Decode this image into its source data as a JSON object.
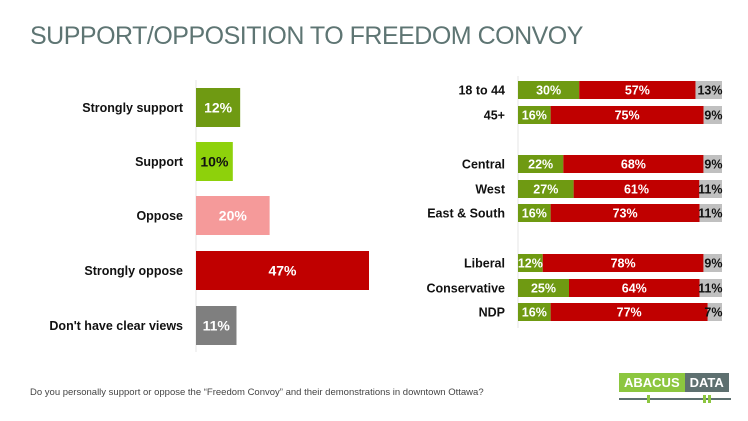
{
  "title": "SUPPORT/OPPOSITION TO FREEDOM CONVOY",
  "footnote": "Do you personally support or oppose the “Freedom Convoy” and their demonstrations in downtown Ottawa?",
  "logo": {
    "left": "ABACUS",
    "right": "DATA"
  },
  "colors": {
    "strongly_support": "#6f9a12",
    "support": "#8ed10b",
    "oppose": "#f59a9a",
    "strongly_oppose": "#c00000",
    "unclear": "#7f7f7f",
    "seg_support": "#6f9a12",
    "seg_oppose": "#c00000",
    "seg_unclear": "#c0c0c0",
    "title": "#5e7573"
  },
  "chart_data": [
    {
      "type": "bar",
      "orientation": "horizontal",
      "title": "SUPPORT/OPPOSITION TO FREEDOM CONVOY",
      "categories": [
        "Strongly support",
        "Support",
        "Oppose",
        "Strongly oppose",
        "Don't have clear views"
      ],
      "values": [
        12,
        10,
        20,
        47,
        11
      ],
      "labels": [
        "12%",
        "10%",
        "20%",
        "47%",
        "11%"
      ],
      "label_colors": [
        "#ffffff",
        "#111111",
        "#ffffff",
        "#ffffff",
        "#ffffff"
      ],
      "xlim": [
        0,
        47
      ],
      "unit": "%"
    },
    {
      "type": "bar",
      "orientation": "horizontal",
      "stacked": true,
      "categories": [
        "18 to 44",
        "45+",
        "Central",
        "West",
        "East & South",
        "Liberal",
        "Conservative",
        "NDP"
      ],
      "groups": [
        [
          "18 to 44",
          "45+"
        ],
        [
          "Central",
          "West",
          "East & South"
        ],
        [
          "Liberal",
          "Conservative",
          "NDP"
        ]
      ],
      "series": [
        {
          "name": "Support",
          "values": [
            30,
            16,
            22,
            27,
            16,
            12,
            25,
            16
          ],
          "labels": [
            "30%",
            "16%",
            "22%",
            "27%",
            "16%",
            "12%",
            "25%",
            "16%"
          ]
        },
        {
          "name": "Oppose",
          "values": [
            57,
            75,
            68,
            61,
            73,
            78,
            64,
            77
          ],
          "labels": [
            "57%",
            "75%",
            "68%",
            "61%",
            "73%",
            "78%",
            "64%",
            "77%"
          ]
        },
        {
          "name": "Don't have clear views",
          "values": [
            13,
            9,
            9,
            11,
            11,
            9,
            11,
            7
          ],
          "labels": [
            "13%",
            "9%",
            "9%",
            "11%",
            "11%",
            "9%",
            "11%",
            "7%"
          ]
        }
      ],
      "unit": "%"
    }
  ]
}
